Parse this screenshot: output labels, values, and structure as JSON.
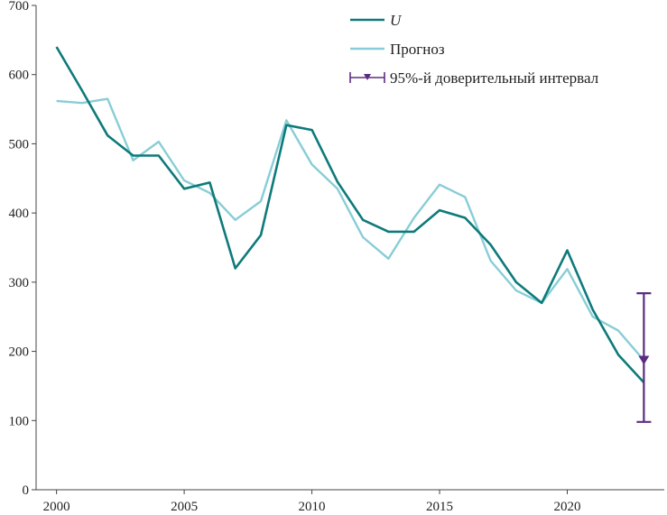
{
  "chart_data": {
    "type": "line",
    "title": "",
    "xlabel": "",
    "ylabel": "",
    "xlim": [
      1999.2,
      2023.8
    ],
    "ylim": [
      0,
      700
    ],
    "x_ticks": [
      2000,
      2005,
      2010,
      2015,
      2020
    ],
    "y_ticks": [
      0,
      100,
      200,
      300,
      400,
      500,
      600,
      700
    ],
    "grid": false,
    "legend_position": "top-right",
    "x": [
      2000,
      2001,
      2002,
      2003,
      2004,
      2005,
      2006,
      2007,
      2008,
      2009,
      2010,
      2011,
      2012,
      2013,
      2014,
      2015,
      2016,
      2017,
      2018,
      2019,
      2020,
      2021,
      2022,
      2023
    ],
    "series": [
      {
        "name": "U",
        "color": "#0e7a7a",
        "values": [
          640,
          577,
          512,
          483,
          483,
          435,
          444,
          320,
          368,
          527,
          520,
          445,
          390,
          373,
          373,
          404,
          393,
          354,
          300,
          270,
          346,
          260,
          195,
          155
        ]
      },
      {
        "name": "Прогноз",
        "color": "#88cdd6",
        "values": [
          562,
          559,
          565,
          476,
          503,
          447,
          429,
          390,
          417,
          534,
          470,
          435,
          365,
          334,
          393,
          441,
          423,
          331,
          288,
          270,
          319,
          250,
          230,
          187
        ]
      }
    ],
    "interval": {
      "name": "95%-й доверительный интервал",
      "color": "#5b2d82",
      "x": 2023,
      "point": 187,
      "lower": 98,
      "upper": 284
    }
  }
}
